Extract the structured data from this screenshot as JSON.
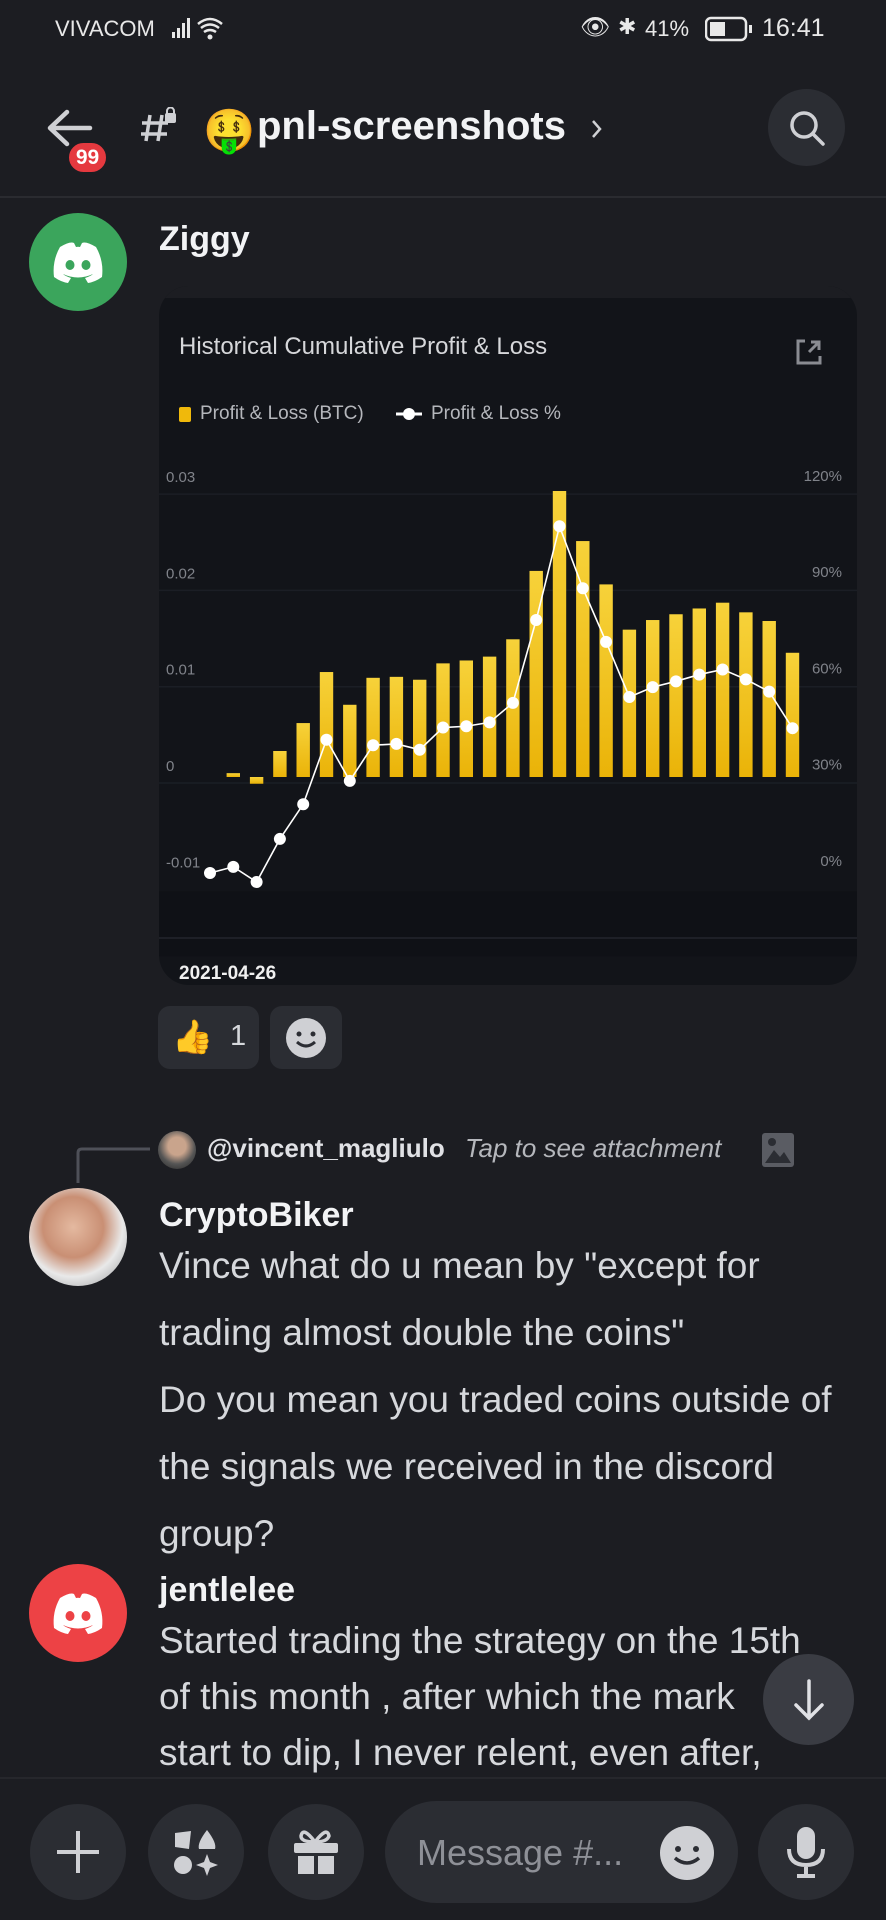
{
  "status_bar": {
    "carrier": "VIVACOM",
    "battery": "41%",
    "time": "16:41"
  },
  "header": {
    "badge": "99",
    "channel_name": "pnl-screenshots",
    "channel_emoji": "🤑",
    "icons": [
      "back-arrow-icon",
      "hash-lock-icon",
      "chevron-right-icon",
      "search-icon"
    ]
  },
  "messages": [
    {
      "author": "Ziggy",
      "avatar_color": "#3ba55c",
      "reactions": [
        {
          "emoji": "👍",
          "count": "1"
        }
      ]
    },
    {
      "reply_to": "@vincent_magliulo",
      "reply_text": "Tap to see attachment",
      "author": "CryptoBiker",
      "lines": [
        "Vince what do u mean by \"except for",
        "trading almost double the coins\"",
        "Do you mean you traded coins outside of",
        "the signals we received in the discord",
        "group?"
      ]
    },
    {
      "author": "jentlelee",
      "avatar_color": "#ed4245",
      "lines": [
        "Started trading the  strategy on the 15th",
        "of this month , after which the mark",
        "start to dip, I never relent, even after,"
      ]
    }
  ],
  "composer": {
    "placeholder": "Message #..."
  },
  "chart_data": {
    "type": "bar+line",
    "title": "Historical Cumulative Profit & Loss",
    "date_label": "2021-04-26",
    "legend_position": "top-left",
    "series": [
      {
        "name": "Profit & Loss (BTC)",
        "type": "bar",
        "color": "#f0b90b",
        "axis": "left",
        "values": [
          0,
          0.0004,
          -0.0007,
          0.0027,
          0.0056,
          0.0109,
          0.0075,
          0.0103,
          0.0104,
          0.0101,
          0.0118,
          0.0121,
          0.0125,
          0.0143,
          0.0214,
          0.0297,
          0.0245,
          0.02,
          0.0153,
          0.0163,
          0.0169,
          0.0175,
          0.0181,
          0.0171,
          0.0162,
          0.0129
        ]
      },
      {
        "name": "Profit & Loss %",
        "type": "line",
        "color": "#ffffff",
        "axis": "right",
        "values": [
          -0.3,
          1.6,
          -3.1,
          10.3,
          21.1,
          41.2,
          28.4,
          39.5,
          39.9,
          38.1,
          45.0,
          45.4,
          46.6,
          52.7,
          78.5,
          107.7,
          88.4,
          71.7,
          54.5,
          57.6,
          59.4,
          61.5,
          63.1,
          60.0,
          56.2,
          44.8
        ]
      }
    ],
    "left_axis": {
      "ticks": [
        "0.03",
        "0.02",
        "0.01",
        "0",
        "-0.01"
      ],
      "values": [
        0.03,
        0.02,
        0.01,
        0,
        -0.01
      ]
    },
    "right_axis": {
      "ticks": [
        "120%",
        "90%",
        "60%",
        "30%",
        "0%"
      ],
      "values": [
        120,
        90,
        60,
        30,
        0
      ]
    },
    "grid": true
  }
}
